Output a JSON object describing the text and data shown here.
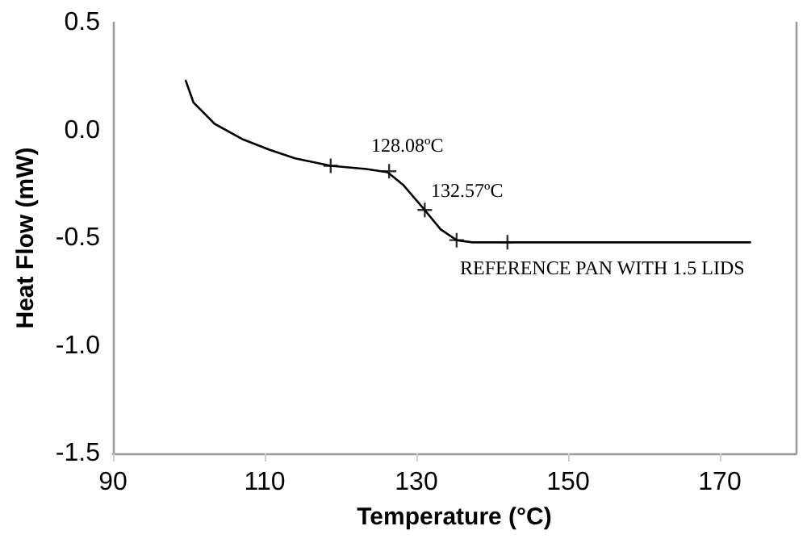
{
  "chart_data": {
    "type": "line",
    "xlabel": "Temperature (°C)",
    "ylabel": "Heat Flow (mW)",
    "xlim": [
      90,
      180
    ],
    "xticks": [
      90,
      110,
      130,
      150,
      170
    ],
    "ylim": [
      -1.5,
      0.5
    ],
    "yticks": [
      -1.5,
      {
        "value": -1,
        "label": "-1.0"
      },
      -0.5,
      {
        "value": 0,
        "label": "0.0"
      },
      0.5
    ],
    "grid": false,
    "marker": "none",
    "line_style": "solid",
    "series": [
      {
        "color": "#000000",
        "x": [
          99.6,
          100.6,
          103.4,
          107,
          110.6,
          114,
          118.7,
          123.4,
          126.2,
          128.3,
          131.1,
          133.2,
          135.3,
          137.4,
          174
        ],
        "values": [
          0.23,
          0.13,
          0.03,
          -0.04,
          -0.09,
          -0.13,
          -0.165,
          -0.18,
          -0.195,
          -0.255,
          -0.37,
          -0.46,
          -0.51,
          -0.52,
          -0.52
        ]
      },
      {
        "type": "scatter",
        "marker": "cross",
        "color": "#000000",
        "x": [
          118.7,
          126.4,
          131.1,
          135.3,
          142
        ],
        "values": [
          -0.165,
          -0.19,
          -0.37,
          -0.51,
          -0.52
        ]
      }
    ],
    "annotations": [
      "128.08ºC",
      "132.57ºC",
      "REFERENCE PAN WITH 1.5 LIDS"
    ]
  }
}
